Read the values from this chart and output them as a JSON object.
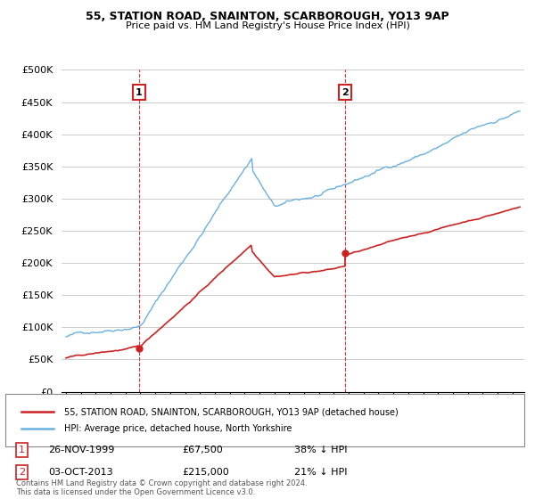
{
  "title": "55, STATION ROAD, SNAINTON, SCARBOROUGH, YO13 9AP",
  "subtitle": "Price paid vs. HM Land Registry's House Price Index (HPI)",
  "legend_entry1": "55, STATION ROAD, SNAINTON, SCARBOROUGH, YO13 9AP (detached house)",
  "legend_entry2": "HPI: Average price, detached house, North Yorkshire",
  "annotation1_label": "1",
  "annotation1_date": "26-NOV-1999",
  "annotation1_price": 67500,
  "annotation1_pct": "38% ↓ HPI",
  "annotation2_label": "2",
  "annotation2_date": "03-OCT-2013",
  "annotation2_price": 215000,
  "annotation2_pct": "21% ↓ HPI",
  "footnote": "Contains HM Land Registry data © Crown copyright and database right 2024.\nThis data is licensed under the Open Government Licence v3.0.",
  "hpi_color": "#6ab0e0",
  "price_color": "#cc2222",
  "vline_color": "#cc2222",
  "background_color": "#ffffff",
  "grid_color": "#cccccc",
  "ylim": [
    0,
    500000
  ],
  "yticks": [
    0,
    50000,
    100000,
    150000,
    200000,
    250000,
    300000,
    350000,
    400000,
    450000,
    500000
  ],
  "sale1_year": 1999.9,
  "sale1_price": 67500,
  "sale2_year": 2013.75,
  "sale2_price": 215000,
  "xstart": 1994.7,
  "xend": 2025.8
}
